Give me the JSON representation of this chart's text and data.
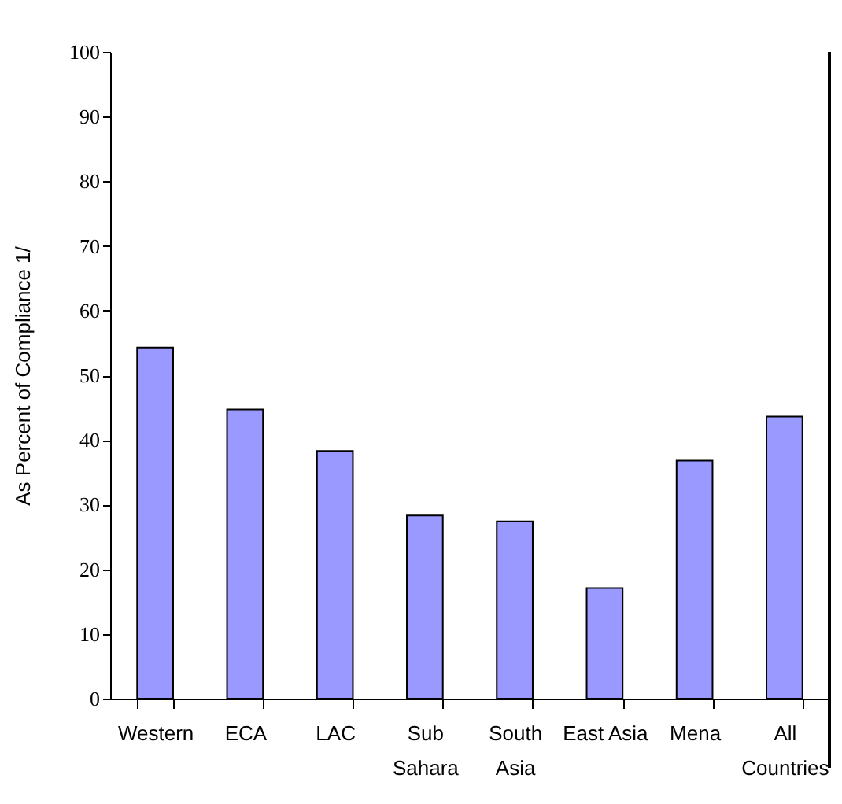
{
  "chart_data": {
    "type": "bar",
    "ylabel": "As Percent of Compliance 1/",
    "categories": [
      "Western",
      "ECA",
      "LAC",
      "Sub\nSahara",
      "South\nAsia",
      "East Asia",
      "Mena",
      "All\nCountries"
    ],
    "values": [
      54.3,
      44.7,
      38.3,
      28.3,
      27.4,
      17.1,
      36.8,
      43.6
    ],
    "color": "#9999ff",
    "ylim": [
      0,
      100
    ],
    "yticks": [
      0,
      10,
      20,
      30,
      40,
      50,
      60,
      70,
      80,
      90,
      100
    ],
    "grid": false
  }
}
